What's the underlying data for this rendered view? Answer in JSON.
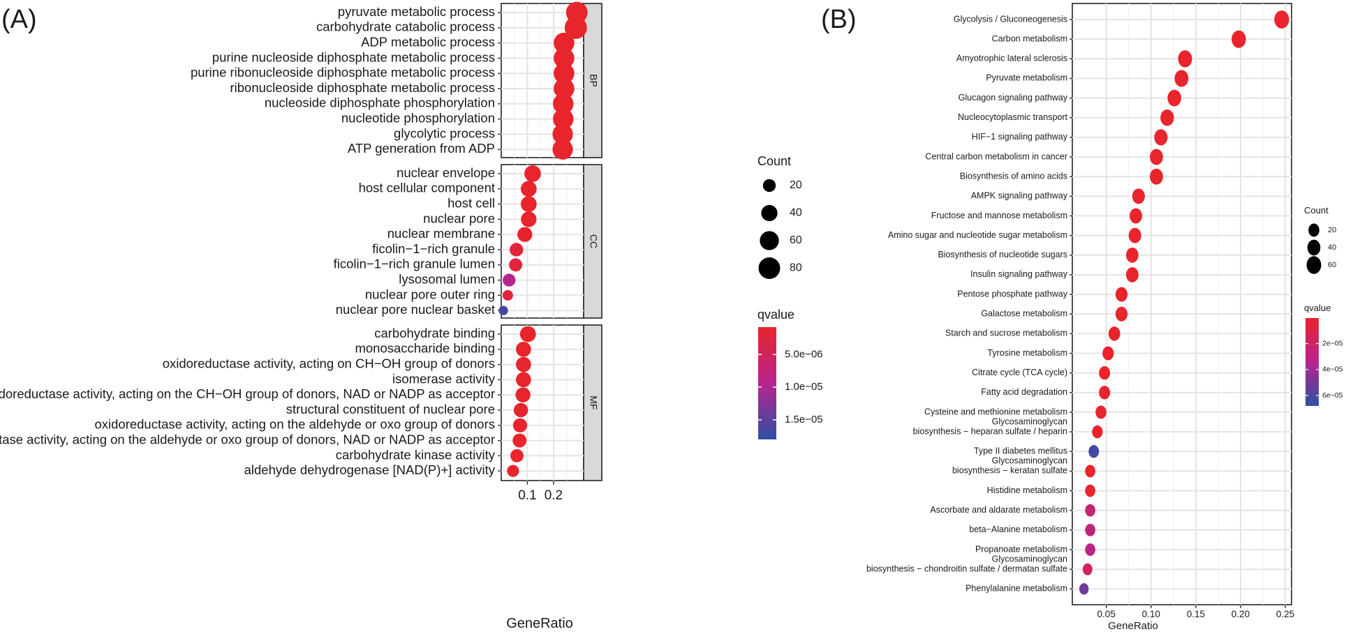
{
  "colors": {
    "qvalue_low": "#e8242c",
    "qvalue_mid": "#b6248f",
    "qvalue_high": "#2e4fa3"
  },
  "chart_data": [
    {
      "panel_label": "(A)",
      "type": "scatter",
      "subtype": "faceted-dotplot",
      "xlabel": "GeneRatio",
      "ylabel": "",
      "xlim": [
        0.0,
        0.315
      ],
      "x_ticks": [
        0.1,
        0.2
      ],
      "x_tick_labels": [
        "0.1",
        "0.2"
      ],
      "facets": [
        {
          "name": "BP",
          "terms": [
            {
              "label": "pyruvate metabolic process",
              "gene_ratio": 0.289,
              "count": 80,
              "qvalue": 8e-07
            },
            {
              "label": "carbohydrate catabolic process",
              "gene_ratio": 0.285,
              "count": 86,
              "qvalue": 8e-07
            },
            {
              "label": "ADP metabolic process",
              "gene_ratio": 0.24,
              "count": 72,
              "qvalue": 8e-07
            },
            {
              "label": "purine nucleoside diphosphate metabolic process",
              "gene_ratio": 0.24,
              "count": 72,
              "qvalue": 8e-07
            },
            {
              "label": "purine ribonucleoside diphosphate metabolic process",
              "gene_ratio": 0.24,
              "count": 72,
              "qvalue": 8e-07
            },
            {
              "label": "ribonucleoside diphosphate metabolic process",
              "gene_ratio": 0.24,
              "count": 72,
              "qvalue": 8e-07
            },
            {
              "label": "nucleoside diphosphate phosphorylation",
              "gene_ratio": 0.237,
              "count": 71,
              "qvalue": 8e-07
            },
            {
              "label": "nucleotide phosphorylation",
              "gene_ratio": 0.237,
              "count": 71,
              "qvalue": 8e-07
            },
            {
              "label": "glycolytic process",
              "gene_ratio": 0.235,
              "count": 70,
              "qvalue": 8e-07
            },
            {
              "label": "ATP generation from ADP",
              "gene_ratio": 0.235,
              "count": 70,
              "qvalue": 8e-07
            }
          ]
        },
        {
          "name": "CC",
          "terms": [
            {
              "label": "nuclear envelope",
              "gene_ratio": 0.12,
              "count": 42,
              "qvalue": 8e-07
            },
            {
              "label": "host cellular component",
              "gene_ratio": 0.105,
              "count": 38,
              "qvalue": 8e-07
            },
            {
              "label": "host cell",
              "gene_ratio": 0.105,
              "count": 38,
              "qvalue": 8e-07
            },
            {
              "label": "nuclear pore",
              "gene_ratio": 0.105,
              "count": 36,
              "qvalue": 8e-07
            },
            {
              "label": "nuclear membrane",
              "gene_ratio": 0.09,
              "count": 32,
              "qvalue": 1e-06
            },
            {
              "label": "ficolin−1−rich granule",
              "gene_ratio": 0.058,
              "count": 24,
              "qvalue": 2e-06
            },
            {
              "label": "ficolin−1−rich granule lumen",
              "gene_ratio": 0.055,
              "count": 22,
              "qvalue": 2e-06
            },
            {
              "label": "lysosomal lumen",
              "gene_ratio": 0.03,
              "count": 20,
              "qvalue": 9.5e-06
            },
            {
              "label": "nuclear pore outer ring",
              "gene_ratio": 0.025,
              "count": 10,
              "qvalue": 2e-06
            },
            {
              "label": "nuclear pore nuclear basket",
              "gene_ratio": 0.008,
              "count": 6,
              "qvalue": 1.65e-05
            }
          ]
        },
        {
          "name": "MF",
          "terms": [
            {
              "label": "carbohydrate binding",
              "gene_ratio": 0.102,
              "count": 38,
              "qvalue": 8e-07
            },
            {
              "label": "monosaccharide binding",
              "gene_ratio": 0.085,
              "count": 33,
              "qvalue": 8e-07
            },
            {
              "label": "oxidoreductase activity, acting on CH−OH group of donors",
              "gene_ratio": 0.085,
              "count": 33,
              "qvalue": 8e-07
            },
            {
              "label": "isomerase activity",
              "gene_ratio": 0.085,
              "count": 33,
              "qvalue": 8e-07
            },
            {
              "label": "oxidoreductase activity, acting on the CH−OH group of donors, NAD or NADP as acceptor",
              "gene_ratio": 0.083,
              "count": 32,
              "qvalue": 8e-07
            },
            {
              "label": "structural constituent of nuclear pore",
              "gene_ratio": 0.075,
              "count": 28,
              "qvalue": 8e-07
            },
            {
              "label": "oxidoreductase activity, acting on the aldehyde or oxo group of donors",
              "gene_ratio": 0.072,
              "count": 27,
              "qvalue": 8e-07
            },
            {
              "label": "oxidoreductase activity, acting on the aldehyde or oxo group of donors, NAD or NADP as acceptor",
              "gene_ratio": 0.07,
              "count": 26,
              "qvalue": 8e-07
            },
            {
              "label": "carbohydrate kinase activity",
              "gene_ratio": 0.06,
              "count": 22,
              "qvalue": 8e-07
            },
            {
              "label": "aldehyde dehydrogenase [NAD(P)+] activity",
              "gene_ratio": 0.045,
              "count": 16,
              "qvalue": 8e-07
            }
          ]
        }
      ],
      "legend_count": {
        "title": "Count",
        "values": [
          20,
          40,
          60,
          80
        ],
        "labels": [
          "20",
          "40",
          "60",
          "80"
        ]
      },
      "legend_qvalue": {
        "title": "qvalue",
        "range": [
          8e-07,
          1.8e-05
        ],
        "ticks": [
          5e-06,
          1e-05,
          1.5e-05
        ],
        "labels": [
          "5.0e−06",
          "1.0e−05",
          "1.5e−05"
        ]
      }
    },
    {
      "panel_label": "(B)",
      "type": "scatter",
      "subtype": "dotplot",
      "xlabel": "GeneRatio",
      "ylabel": "",
      "xlim": [
        0.012,
        0.257
      ],
      "x_ticks": [
        0.05,
        0.1,
        0.15,
        0.2,
        0.25
      ],
      "x_tick_labels": [
        "0.05",
        "0.10",
        "0.15",
        "0.20",
        "0.25"
      ],
      "terms": [
        {
          "label": "Glycolysis / Gluconeogenesis",
          "gene_ratio": 0.246,
          "count": 62,
          "qvalue": 3e-07
        },
        {
          "label": "Carbon metabolism",
          "gene_ratio": 0.198,
          "count": 56,
          "qvalue": 3e-07
        },
        {
          "label": "Amyotrophic lateral sclerosis",
          "gene_ratio": 0.138,
          "count": 52,
          "qvalue": 3e-07
        },
        {
          "label": "Pyruvate metabolism",
          "gene_ratio": 0.134,
          "count": 50,
          "qvalue": 3e-07
        },
        {
          "label": "Glucagon signaling pathway",
          "gene_ratio": 0.126,
          "count": 48,
          "qvalue": 3e-07
        },
        {
          "label": "Nucleocytoplasmic transport",
          "gene_ratio": 0.118,
          "count": 46,
          "qvalue": 3e-07
        },
        {
          "label": "HIF−1 signaling pathway",
          "gene_ratio": 0.111,
          "count": 44,
          "qvalue": 3e-07
        },
        {
          "label": "Central carbon metabolism in cancer",
          "gene_ratio": 0.106,
          "count": 42,
          "qvalue": 3e-07
        },
        {
          "label": "Biosynthesis of amino acids",
          "gene_ratio": 0.106,
          "count": 42,
          "qvalue": 3e-07
        },
        {
          "label": "AMPK signaling pathway",
          "gene_ratio": 0.086,
          "count": 36,
          "qvalue": 3e-07
        },
        {
          "label": "Fructose and mannose metabolism",
          "gene_ratio": 0.083,
          "count": 35,
          "qvalue": 3e-07
        },
        {
          "label": "Amino sugar and nucleotide sugar metabolism",
          "gene_ratio": 0.082,
          "count": 35,
          "qvalue": 3e-07
        },
        {
          "label": "Biosynthesis of nucleotide sugars",
          "gene_ratio": 0.079,
          "count": 34,
          "qvalue": 3e-07
        },
        {
          "label": "Insulin signaling pathway",
          "gene_ratio": 0.079,
          "count": 34,
          "qvalue": 3e-07
        },
        {
          "label": "Pentose phosphate pathway",
          "gene_ratio": 0.067,
          "count": 30,
          "qvalue": 3e-07
        },
        {
          "label": "Galactose metabolism",
          "gene_ratio": 0.067,
          "count": 30,
          "qvalue": 3e-07
        },
        {
          "label": "Starch and sucrose metabolism",
          "gene_ratio": 0.059,
          "count": 27,
          "qvalue": 3e-07
        },
        {
          "label": "Tyrosine metabolism",
          "gene_ratio": 0.052,
          "count": 24,
          "qvalue": 3e-07
        },
        {
          "label": "Citrate cycle (TCA cycle)",
          "gene_ratio": 0.048,
          "count": 22,
          "qvalue": 3e-07
        },
        {
          "label": "Fatty acid degradation",
          "gene_ratio": 0.048,
          "count": 22,
          "qvalue": 3e-07
        },
        {
          "label": "Cysteine and methionine metabolism",
          "gene_ratio": 0.044,
          "count": 20,
          "qvalue": 3e-07
        },
        {
          "label": "Glycosaminoglycan\nbiosynthesis − heparan sulfate / heparin",
          "gene_ratio": 0.04,
          "count": 18,
          "qvalue": 3e-07
        },
        {
          "label": "Type II diabetes mellitus",
          "gene_ratio": 0.036,
          "count": 17,
          "qvalue": 6.3e-05
        },
        {
          "label": "Glycosaminoglycan\nbiosynthesis − keratan sulfate",
          "gene_ratio": 0.032,
          "count": 15,
          "qvalue": 3e-07
        },
        {
          "label": "Histidine metabolism",
          "gene_ratio": 0.032,
          "count": 15,
          "qvalue": 3e-07
        },
        {
          "label": "Ascorbate and aldarate metabolism",
          "gene_ratio": 0.032,
          "count": 15,
          "qvalue": 2.6e-05
        },
        {
          "label": "beta−Alanine metabolism",
          "gene_ratio": 0.032,
          "count": 15,
          "qvalue": 2.8e-05
        },
        {
          "label": "Propanoate metabolism",
          "gene_ratio": 0.032,
          "count": 15,
          "qvalue": 3.1e-05
        },
        {
          "label": "Glycosaminoglycan\nbiosynthesis − chondroitin sulfate / dermatan sulfate",
          "gene_ratio": 0.029,
          "count": 12,
          "qvalue": 1.5e-05
        },
        {
          "label": "Phenylalanine metabolism",
          "gene_ratio": 0.025,
          "count": 10,
          "qvalue": 5.2e-05
        }
      ],
      "legend_count": {
        "title": "Count",
        "values": [
          20,
          40,
          60
        ],
        "labels": [
          "20",
          "40",
          "60"
        ]
      },
      "legend_qvalue": {
        "title": "qvalue",
        "range": [
          3e-07,
          6.8e-05
        ],
        "ticks": [
          2e-05,
          4e-05,
          6e-05
        ],
        "labels": [
          "2e−05",
          "4e−05",
          "6e−05"
        ]
      }
    }
  ]
}
